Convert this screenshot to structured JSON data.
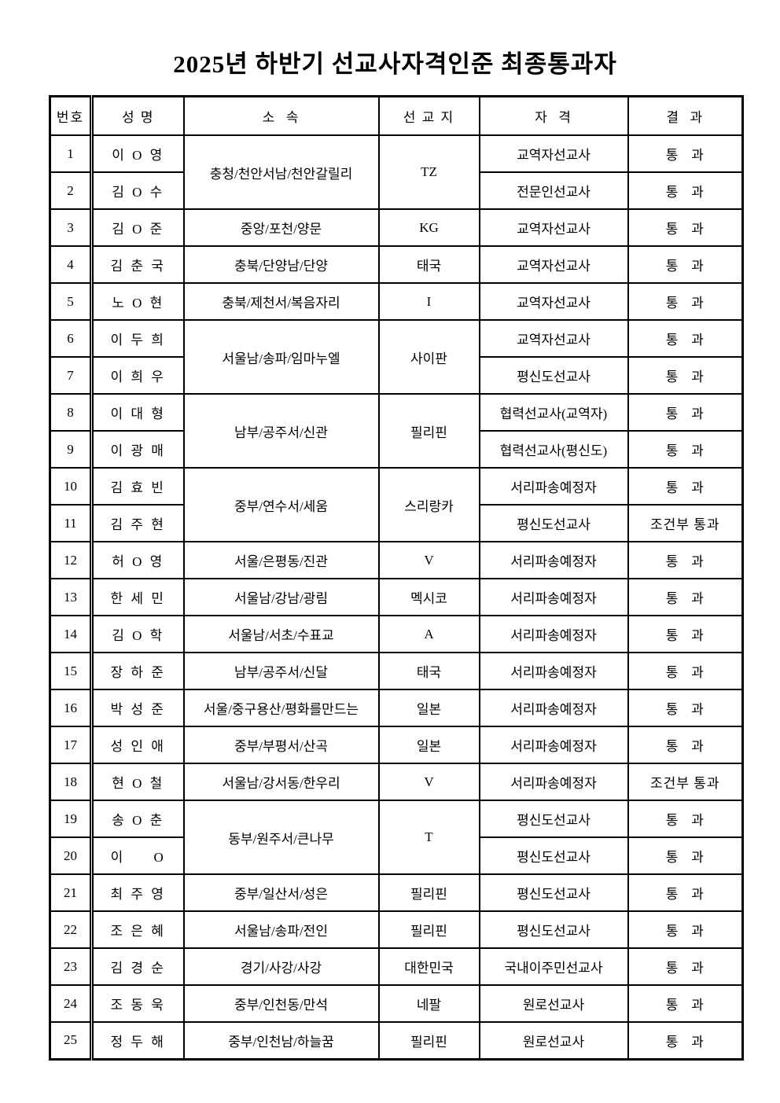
{
  "page": {
    "title": "2025년 하반기 선교사자격인준 최종통과자"
  },
  "table": {
    "headers": {
      "no": "번호",
      "name": "성 명",
      "affiliation": "소  속",
      "field": "선 교 지",
      "qualification": "자  격",
      "result": "결  과"
    },
    "rows": [
      {
        "no": "1",
        "name": "이 O 영",
        "aff": "충청/천안서남/천안갈릴리",
        "aff_span": 2,
        "field": "TZ",
        "field_span": 2,
        "qual": "교역자선교사",
        "result": "통   과"
      },
      {
        "no": "2",
        "name": "김 O 수",
        "qual": "전문인선교사",
        "result": "통   과"
      },
      {
        "no": "3",
        "name": "김 O 준",
        "aff": "중앙/포천/양문",
        "field": "KG",
        "qual": "교역자선교사",
        "result": "통   과"
      },
      {
        "no": "4",
        "name": "김 춘 국",
        "aff": "충북/단양남/단양",
        "field": "태국",
        "qual": "교역자선교사",
        "result": "통   과"
      },
      {
        "no": "5",
        "name": "노 O 현",
        "aff": "충북/제천서/복음자리",
        "field": "I",
        "qual": "교역자선교사",
        "result": "통   과"
      },
      {
        "no": "6",
        "name": "이 두 희",
        "aff": "서울남/송파/임마누엘",
        "aff_span": 2,
        "field": "사이판",
        "field_span": 2,
        "qual": "교역자선교사",
        "result": "통   과"
      },
      {
        "no": "7",
        "name": "이 희 우",
        "qual": "평신도선교사",
        "result": "통   과"
      },
      {
        "no": "8",
        "name": "이 대 형",
        "aff": "남부/공주서/신관",
        "aff_span": 2,
        "field": "필리핀",
        "field_span": 2,
        "qual": "협력선교사(교역자)",
        "result": "통   과"
      },
      {
        "no": "9",
        "name": "이 광 매",
        "qual": "협력선교사(평신도)",
        "result": "통   과"
      },
      {
        "no": "10",
        "name": "김 효 빈",
        "aff": "중부/연수서/세움",
        "aff_span": 2,
        "field": "스리랑카",
        "field_span": 2,
        "qual": "서리파송예정자",
        "result": "통   과"
      },
      {
        "no": "11",
        "name": "김 주 현",
        "qual": "평신도선교사",
        "result": "조건부 통과"
      },
      {
        "no": "12",
        "name": "허 O 영",
        "aff": "서울/은평동/진관",
        "field": "V",
        "qual": "서리파송예정자",
        "result": "통   과"
      },
      {
        "no": "13",
        "name": "한 세 민",
        "aff": "서울남/강남/광림",
        "field": "멕시코",
        "qual": "서리파송예정자",
        "result": "통   과"
      },
      {
        "no": "14",
        "name": "김 O 학",
        "aff": "서울남/서초/수표교",
        "field": "A",
        "qual": "서리파송예정자",
        "result": "통   과"
      },
      {
        "no": "15",
        "name": "장 하 준",
        "aff": "남부/공주서/신달",
        "field": "태국",
        "qual": "서리파송예정자",
        "result": "통   과"
      },
      {
        "no": "16",
        "name": "박 성 준",
        "aff": "서울/중구용산/평화를만드는",
        "field": "일본",
        "qual": "서리파송예정자",
        "result": "통   과"
      },
      {
        "no": "17",
        "name": "성 인 애",
        "aff": "중부/부평서/산곡",
        "field": "일본",
        "qual": "서리파송예정자",
        "result": "통   과"
      },
      {
        "no": "18",
        "name": "현 O 철",
        "aff": "서울남/강서동/한우리",
        "field": "V",
        "qual": "서리파송예정자",
        "result": "조건부 통과"
      },
      {
        "no": "19",
        "name": "송 O 춘",
        "aff": "동부/원주서/큰나무",
        "aff_span": 2,
        "field": "T",
        "field_span": 2,
        "qual": "평신도선교사",
        "result": "통   과"
      },
      {
        "no": "20",
        "name": "이     O",
        "qual": "평신도선교사",
        "result": "통   과"
      },
      {
        "no": "21",
        "name": "최 주 영",
        "aff": "중부/일산서/성은",
        "field": "필리핀",
        "qual": "평신도선교사",
        "result": "통   과"
      },
      {
        "no": "22",
        "name": "조 은 혜",
        "aff": "서울남/송파/전인",
        "field": "필리핀",
        "qual": "평신도선교사",
        "result": "통   과"
      },
      {
        "no": "23",
        "name": "김 경 순",
        "aff": "경기/사강/사강",
        "field": "대한민국",
        "qual": "국내이주민선교사",
        "result": "통   과"
      },
      {
        "no": "24",
        "name": "조 동 욱",
        "aff": "중부/인천동/만석",
        "field": "네팔",
        "qual": "원로선교사",
        "result": "통   과"
      },
      {
        "no": "25",
        "name": "정 두 해",
        "aff": "중부/인천남/하늘꿈",
        "field": "필리핀",
        "qual": "원로선교사",
        "result": "통   과"
      }
    ]
  }
}
